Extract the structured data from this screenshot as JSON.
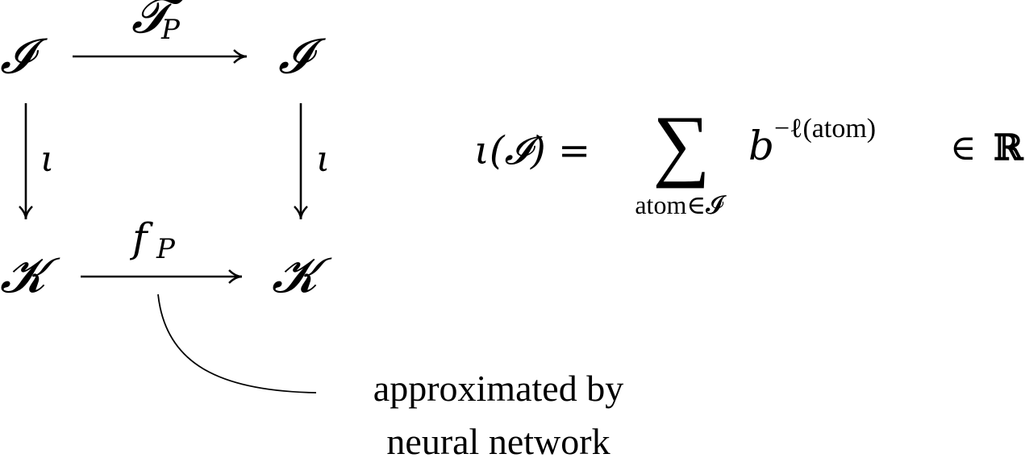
{
  "diagram": {
    "nodes": {
      "top_left": "𝓘",
      "top_right": "𝓘",
      "bottom_left": "𝓚",
      "bottom_right": "𝓚"
    },
    "edges": {
      "top": {
        "label": "𝓣",
        "subscript": "P"
      },
      "left": {
        "label": "ι"
      },
      "right": {
        "label": "ι"
      },
      "bottom": {
        "label": "f",
        "subscript": "P"
      }
    },
    "annotation": {
      "line1": "approximated by",
      "line2": "neural network"
    }
  },
  "formula": {
    "lhs": "ι(𝓘) =",
    "sum_symbol": "∑",
    "sum_index": "atom∈𝓘",
    "base": "b",
    "exponent": "−ℓ(atom)",
    "membership": "∈",
    "set": "ℝ"
  }
}
